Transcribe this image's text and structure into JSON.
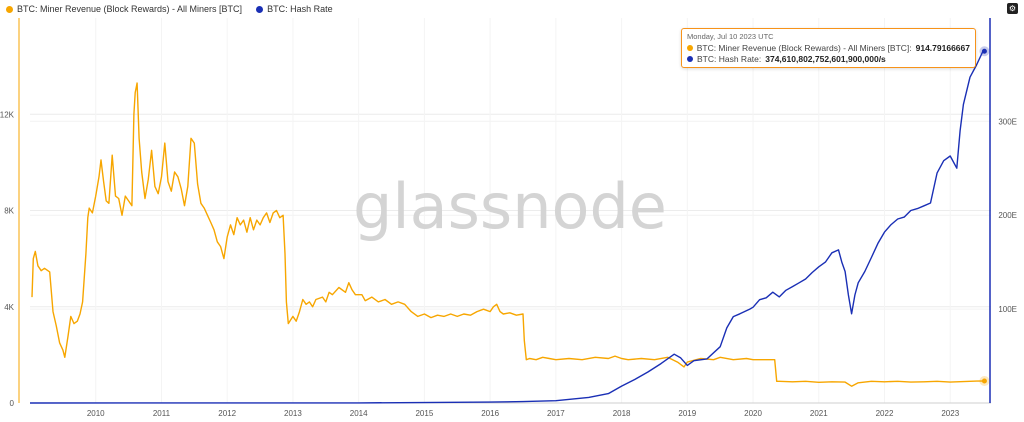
{
  "legend": {
    "items": [
      {
        "label": "BTC: Miner Revenue (Block Rewards) - All Miners [BTC]",
        "color": "#f7a600"
      },
      {
        "label": "BTC: Hash Rate",
        "color": "#1a2fb5"
      }
    ]
  },
  "watermark": "glassnode",
  "settings_icon": "gear-icon",
  "tooltip": {
    "date": "Monday, Jul 10 2023 UTC",
    "rows": [
      {
        "label": "BTC: Miner Revenue (Block Rewards) - All Miners [BTC]: ",
        "value": "914.79166667",
        "color": "#f7a600"
      },
      {
        "label": "BTC: Hash Rate: ",
        "value": "374,610,802,752,601,900,000/s",
        "color": "#1a2fb5"
      }
    ]
  },
  "chart_data": {
    "type": "line",
    "title": "",
    "x_ticks": [
      "2010",
      "2011",
      "2012",
      "2013",
      "2014",
      "2015",
      "2016",
      "2017",
      "2018",
      "2019",
      "2020",
      "2021",
      "2022",
      "2023"
    ],
    "y_left": {
      "ticks": [
        "0",
        "4K",
        "8K",
        "12K"
      ],
      "tick_values": [
        0,
        4000,
        8000,
        12000
      ],
      "range": [
        0,
        16000
      ]
    },
    "y_right": {
      "ticks": [
        "100E",
        "200E",
        "300E"
      ],
      "tick_values": [
        100,
        200,
        300
      ],
      "range": [
        0,
        410
      ],
      "unit": "EH/s"
    },
    "x_range": [
      2009.0,
      2023.62
    ],
    "grid": true,
    "legend_position": "top-left",
    "series": [
      {
        "name": "BTC: Miner Revenue (Block Rewards) - All Miners [BTC]",
        "axis": "left",
        "color": "#f7a600",
        "points": [
          [
            2009.03,
            4400
          ],
          [
            2009.05,
            6000
          ],
          [
            2009.08,
            6300
          ],
          [
            2009.12,
            5700
          ],
          [
            2009.17,
            5500
          ],
          [
            2009.22,
            5600
          ],
          [
            2009.3,
            5450
          ],
          [
            2009.35,
            3800
          ],
          [
            2009.4,
            3200
          ],
          [
            2009.45,
            2500
          ],
          [
            2009.5,
            2200
          ],
          [
            2009.53,
            1900
          ],
          [
            2009.58,
            2800
          ],
          [
            2009.62,
            3600
          ],
          [
            2009.67,
            3300
          ],
          [
            2009.72,
            3400
          ],
          [
            2009.76,
            3700
          ],
          [
            2009.8,
            4200
          ],
          [
            2009.85,
            6200
          ],
          [
            2009.88,
            7700
          ],
          [
            2009.9,
            8100
          ],
          [
            2009.95,
            7900
          ],
          [
            2010.0,
            8600
          ],
          [
            2010.05,
            9400
          ],
          [
            2010.08,
            10100
          ],
          [
            2010.12,
            9200
          ],
          [
            2010.16,
            8400
          ],
          [
            2010.2,
            8300
          ],
          [
            2010.25,
            10300
          ],
          [
            2010.3,
            8600
          ],
          [
            2010.35,
            8500
          ],
          [
            2010.4,
            7800
          ],
          [
            2010.45,
            8600
          ],
          [
            2010.5,
            8400
          ],
          [
            2010.55,
            8200
          ],
          [
            2010.58,
            12000
          ],
          [
            2010.6,
            12900
          ],
          [
            2010.63,
            13300
          ],
          [
            2010.66,
            11000
          ],
          [
            2010.7,
            9600
          ],
          [
            2010.75,
            8500
          ],
          [
            2010.8,
            9300
          ],
          [
            2010.85,
            10500
          ],
          [
            2010.9,
            9000
          ],
          [
            2010.95,
            8700
          ],
          [
            2011.0,
            9400
          ],
          [
            2011.05,
            10800
          ],
          [
            2011.1,
            9200
          ],
          [
            2011.15,
            8800
          ],
          [
            2011.2,
            9600
          ],
          [
            2011.25,
            9400
          ],
          [
            2011.3,
            8900
          ],
          [
            2011.35,
            8200
          ],
          [
            2011.4,
            9000
          ],
          [
            2011.45,
            11000
          ],
          [
            2011.5,
            10800
          ],
          [
            2011.55,
            9100
          ],
          [
            2011.6,
            8300
          ],
          [
            2011.65,
            8100
          ],
          [
            2011.7,
            7800
          ],
          [
            2011.75,
            7500
          ],
          [
            2011.8,
            7200
          ],
          [
            2011.85,
            6700
          ],
          [
            2011.9,
            6500
          ],
          [
            2011.95,
            6000
          ],
          [
            2012.0,
            6900
          ],
          [
            2012.05,
            7400
          ],
          [
            2012.1,
            7000
          ],
          [
            2012.15,
            7700
          ],
          [
            2012.2,
            7400
          ],
          [
            2012.25,
            7600
          ],
          [
            2012.3,
            7100
          ],
          [
            2012.35,
            7700
          ],
          [
            2012.4,
            7200
          ],
          [
            2012.45,
            7600
          ],
          [
            2012.5,
            7400
          ],
          [
            2012.55,
            7700
          ],
          [
            2012.6,
            7900
          ],
          [
            2012.65,
            7500
          ],
          [
            2012.7,
            7900
          ],
          [
            2012.75,
            8000
          ],
          [
            2012.8,
            7700
          ],
          [
            2012.85,
            7800
          ],
          [
            2012.88,
            6200
          ],
          [
            2012.9,
            4200
          ],
          [
            2012.93,
            3300
          ],
          [
            2013.0,
            3600
          ],
          [
            2013.05,
            3400
          ],
          [
            2013.1,
            3800
          ],
          [
            2013.15,
            4300
          ],
          [
            2013.2,
            4100
          ],
          [
            2013.25,
            4200
          ],
          [
            2013.3,
            4000
          ],
          [
            2013.35,
            4300
          ],
          [
            2013.45,
            4400
          ],
          [
            2013.5,
            4200
          ],
          [
            2013.55,
            4600
          ],
          [
            2013.6,
            4500
          ],
          [
            2013.7,
            4800
          ],
          [
            2013.8,
            4600
          ],
          [
            2013.85,
            5000
          ],
          [
            2013.9,
            4700
          ],
          [
            2013.95,
            4500
          ],
          [
            2014.05,
            4500
          ],
          [
            2014.1,
            4250
          ],
          [
            2014.2,
            4400
          ],
          [
            2014.3,
            4200
          ],
          [
            2014.4,
            4300
          ],
          [
            2014.5,
            4100
          ],
          [
            2014.6,
            4200
          ],
          [
            2014.7,
            4100
          ],
          [
            2014.8,
            3800
          ],
          [
            2014.9,
            3600
          ],
          [
            2015.0,
            3700
          ],
          [
            2015.1,
            3550
          ],
          [
            2015.2,
            3650
          ],
          [
            2015.3,
            3600
          ],
          [
            2015.4,
            3700
          ],
          [
            2015.5,
            3600
          ],
          [
            2015.6,
            3700
          ],
          [
            2015.7,
            3650
          ],
          [
            2015.8,
            3800
          ],
          [
            2015.9,
            3900
          ],
          [
            2016.0,
            3800
          ],
          [
            2016.05,
            4000
          ],
          [
            2016.1,
            4100
          ],
          [
            2016.15,
            3800
          ],
          [
            2016.2,
            3700
          ],
          [
            2016.3,
            3750
          ],
          [
            2016.4,
            3650
          ],
          [
            2016.5,
            3700
          ],
          [
            2016.52,
            2600
          ],
          [
            2016.55,
            1800
          ],
          [
            2016.6,
            1850
          ],
          [
            2016.7,
            1800
          ],
          [
            2016.8,
            1900
          ],
          [
            2016.9,
            1850
          ],
          [
            2017.0,
            1800
          ],
          [
            2017.2,
            1850
          ],
          [
            2017.4,
            1800
          ],
          [
            2017.6,
            1900
          ],
          [
            2017.8,
            1850
          ],
          [
            2017.9,
            1950
          ],
          [
            2018.0,
            1850
          ],
          [
            2018.1,
            1800
          ],
          [
            2018.3,
            1850
          ],
          [
            2018.5,
            1800
          ],
          [
            2018.7,
            1900
          ],
          [
            2018.85,
            1700
          ],
          [
            2018.95,
            1500
          ],
          [
            2019.0,
            1700
          ],
          [
            2019.2,
            1850
          ],
          [
            2019.4,
            1800
          ],
          [
            2019.5,
            1900
          ],
          [
            2019.7,
            1800
          ],
          [
            2019.9,
            1850
          ],
          [
            2020.0,
            1800
          ],
          [
            2020.2,
            1800
          ],
          [
            2020.33,
            1800
          ],
          [
            2020.36,
            900
          ],
          [
            2020.4,
            900
          ],
          [
            2020.6,
            880
          ],
          [
            2020.8,
            900
          ],
          [
            2021.0,
            860
          ],
          [
            2021.2,
            880
          ],
          [
            2021.4,
            870
          ],
          [
            2021.5,
            700
          ],
          [
            2021.6,
            840
          ],
          [
            2021.8,
            900
          ],
          [
            2022.0,
            880
          ],
          [
            2022.2,
            900
          ],
          [
            2022.4,
            870
          ],
          [
            2022.6,
            880
          ],
          [
            2022.8,
            900
          ],
          [
            2023.0,
            870
          ],
          [
            2023.2,
            890
          ],
          [
            2023.4,
            910
          ],
          [
            2023.52,
            914.79
          ]
        ]
      },
      {
        "name": "BTC: Hash Rate",
        "axis": "right",
        "color": "#1a2fb5",
        "points": [
          [
            2009.0,
            0
          ],
          [
            2014.0,
            0.1
          ],
          [
            2016.0,
            1
          ],
          [
            2016.5,
            1.5
          ],
          [
            2017.0,
            2.5
          ],
          [
            2017.5,
            6
          ],
          [
            2017.8,
            10
          ],
          [
            2018.0,
            18
          ],
          [
            2018.2,
            25
          ],
          [
            2018.4,
            33
          ],
          [
            2018.6,
            42
          ],
          [
            2018.8,
            52
          ],
          [
            2018.9,
            48
          ],
          [
            2019.0,
            40
          ],
          [
            2019.1,
            45
          ],
          [
            2019.3,
            47
          ],
          [
            2019.5,
            60
          ],
          [
            2019.6,
            80
          ],
          [
            2019.7,
            92
          ],
          [
            2019.8,
            95
          ],
          [
            2019.95,
            100
          ],
          [
            2020.0,
            102
          ],
          [
            2020.1,
            110
          ],
          [
            2020.2,
            112
          ],
          [
            2020.3,
            118
          ],
          [
            2020.4,
            113
          ],
          [
            2020.5,
            120
          ],
          [
            2020.6,
            124
          ],
          [
            2020.7,
            128
          ],
          [
            2020.8,
            132
          ],
          [
            2020.9,
            139
          ],
          [
            2021.0,
            145
          ],
          [
            2021.1,
            150
          ],
          [
            2021.2,
            160
          ],
          [
            2021.3,
            163
          ],
          [
            2021.35,
            150
          ],
          [
            2021.4,
            140
          ],
          [
            2021.45,
            115
          ],
          [
            2021.5,
            95
          ],
          [
            2021.55,
            115
          ],
          [
            2021.6,
            128
          ],
          [
            2021.7,
            140
          ],
          [
            2021.8,
            155
          ],
          [
            2021.9,
            170
          ],
          [
            2022.0,
            182
          ],
          [
            2022.1,
            190
          ],
          [
            2022.2,
            196
          ],
          [
            2022.3,
            198
          ],
          [
            2022.4,
            205
          ],
          [
            2022.5,
            207
          ],
          [
            2022.6,
            210
          ],
          [
            2022.7,
            213
          ],
          [
            2022.8,
            245
          ],
          [
            2022.9,
            258
          ],
          [
            2023.0,
            263
          ],
          [
            2023.1,
            250
          ],
          [
            2023.15,
            290
          ],
          [
            2023.2,
            318
          ],
          [
            2023.3,
            347
          ],
          [
            2023.4,
            360
          ],
          [
            2023.5,
            375
          ],
          [
            2023.52,
            374.6
          ]
        ]
      }
    ]
  }
}
